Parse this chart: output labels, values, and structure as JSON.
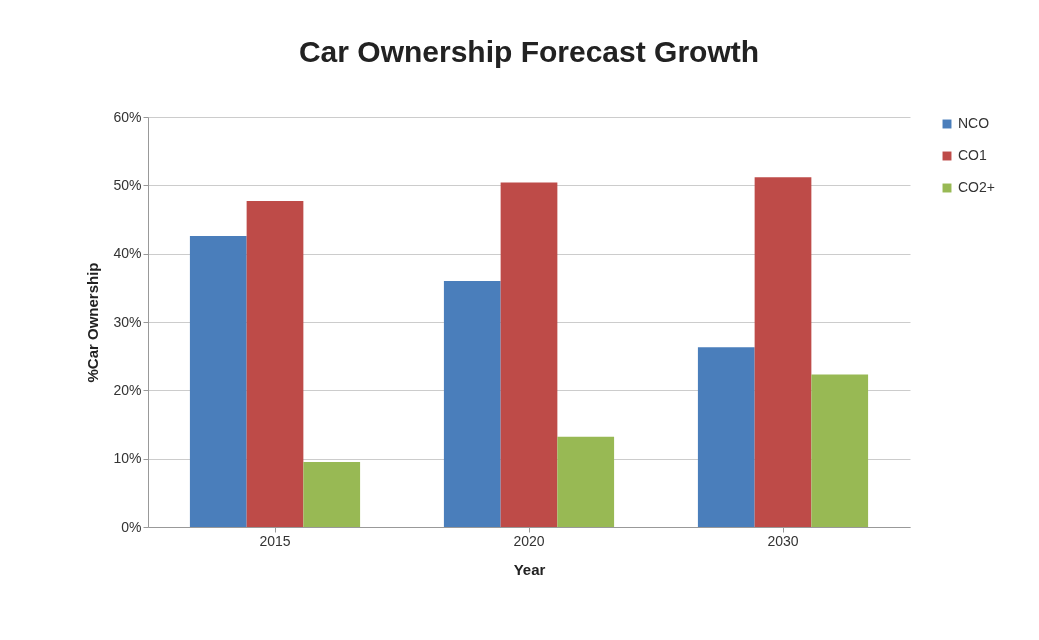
{
  "chart_data": {
    "type": "bar",
    "title": "Car Ownership Forecast Growth",
    "xlabel": "Year",
    "ylabel": "%Car Ownership",
    "categories": [
      "2015",
      "2020",
      "2030"
    ],
    "series": [
      {
        "name": "NCO",
        "color": "#4a7ebb",
        "values": [
          42.6,
          36.0,
          26.3
        ]
      },
      {
        "name": "CO1",
        "color": "#be4b48",
        "values": [
          47.7,
          50.4,
          51.2
        ]
      },
      {
        "name": "CO2+",
        "color": "#98b954",
        "values": [
          9.5,
          13.2,
          22.3
        ]
      }
    ],
    "ylim": [
      0,
      60
    ],
    "yticks": [
      {
        "value": 0,
        "label": "0%"
      },
      {
        "value": 10,
        "label": "10%"
      },
      {
        "value": 20,
        "label": "20%"
      },
      {
        "value": 30,
        "label": "30%"
      },
      {
        "value": 40,
        "label": "40%"
      },
      {
        "value": 50,
        "label": "50%"
      },
      {
        "value": 60,
        "label": "60%"
      }
    ],
    "grid": "y",
    "legend": "right"
  }
}
